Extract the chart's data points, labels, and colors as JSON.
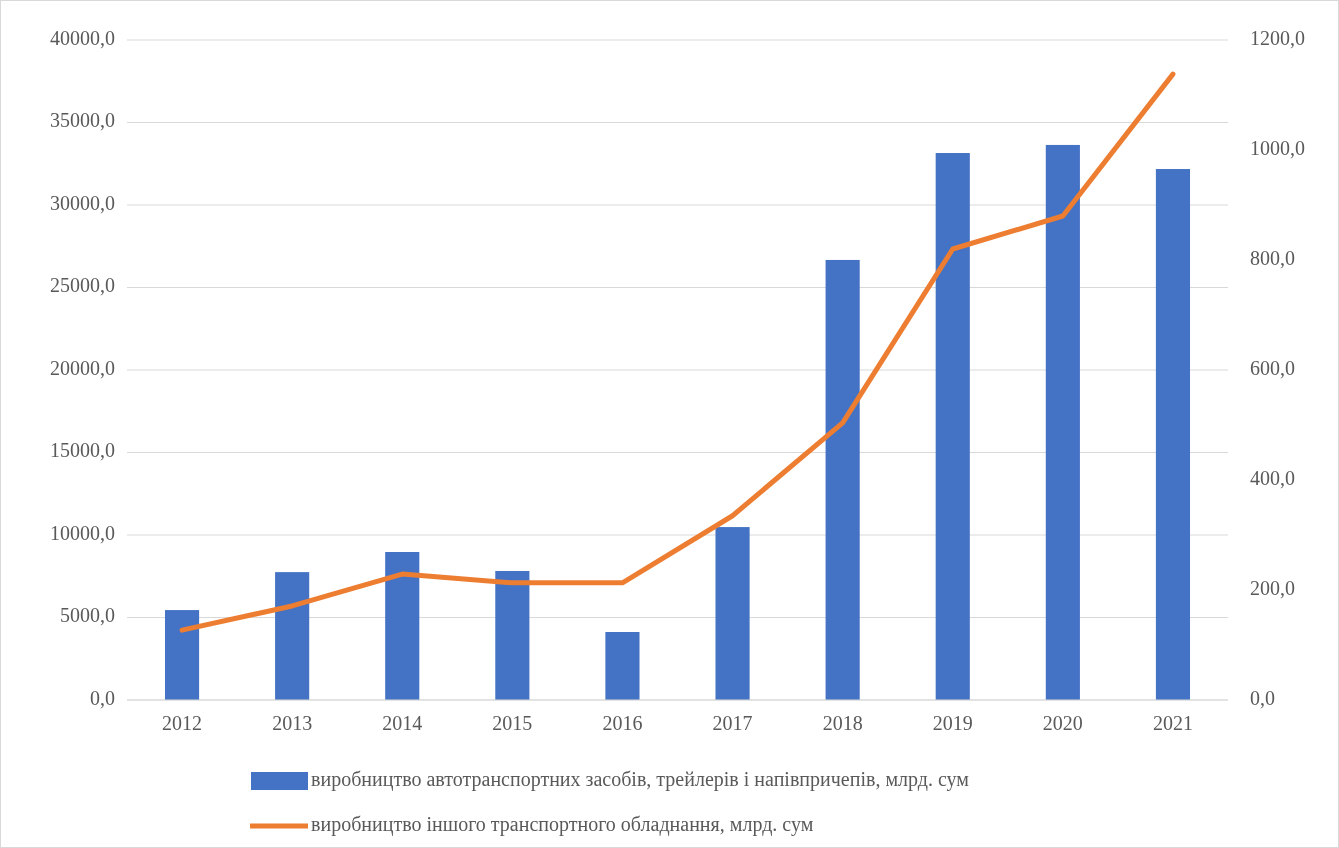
{
  "chart_data": {
    "type": "bar",
    "categories": [
      "2012",
      "2013",
      "2014",
      "2015",
      "2016",
      "2017",
      "2018",
      "2019",
      "2020",
      "2021"
    ],
    "series": [
      {
        "name": "виробництво автотранспортних засобів, трейлерів і напівпричепів, млрд. сум",
        "color": "#4472c4",
        "values": [
          5450,
          7750,
          8970,
          7820,
          4120,
          10480,
          26670,
          33150,
          33640,
          32180
        ]
      },
      {
        "name": "виробництво іншого транспортного обладнання, млрд. сум",
        "color": "#ed7d31",
        "type": "line",
        "axis": "y2",
        "values": [
          127,
          171,
          229,
          213,
          213,
          335,
          504,
          820,
          880,
          1138
        ]
      }
    ],
    "ylim": [
      0,
      40000
    ],
    "yticks": [
      {
        "value": 0,
        "label": "0,0"
      },
      {
        "value": 5000,
        "label": "5000,0"
      },
      {
        "value": 10000,
        "label": "10000,0"
      },
      {
        "value": 15000,
        "label": "15000,0"
      },
      {
        "value": 20000,
        "label": "20000,0"
      },
      {
        "value": 25000,
        "label": "25000,0"
      },
      {
        "value": 30000,
        "label": "30000,0"
      },
      {
        "value": 35000,
        "label": "35000,0"
      },
      {
        "value": 40000,
        "label": "40000,0"
      }
    ],
    "y2lim": [
      0,
      1200
    ],
    "y2ticks": [
      {
        "value": 0,
        "label": "0,0"
      },
      {
        "value": 200,
        "label": "200,0"
      },
      {
        "value": 400,
        "label": "400,0"
      },
      {
        "value": 600,
        "label": "600,0"
      },
      {
        "value": 800,
        "label": "800,0"
      },
      {
        "value": 1000,
        "label": "1000,0"
      },
      {
        "value": 1200,
        "label": "1200,0"
      }
    ],
    "grid": "y",
    "legend": "bottom",
    "marker": "none",
    "line_style": "solid"
  }
}
